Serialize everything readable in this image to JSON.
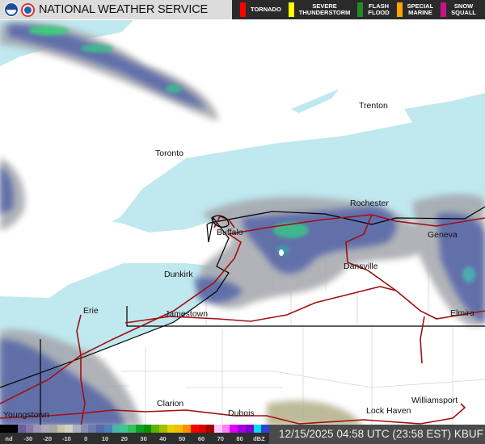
{
  "header": {
    "title": "NATIONAL WEATHER SERVICE",
    "logos": [
      "noaa-logo",
      "nws-logo"
    ],
    "warnings": [
      {
        "label_line1": "TORNADO",
        "label_line2": "",
        "color": "#ff0000"
      },
      {
        "label_line1": "SEVERE",
        "label_line2": "THUNDERSTORM",
        "color": "#ffff00"
      },
      {
        "label_line1": "FLASH",
        "label_line2": "FLOOD",
        "color": "#228b22"
      },
      {
        "label_line1": "SPECIAL",
        "label_line2": "MARINE",
        "color": "#ffa500"
      },
      {
        "label_line1": "SNOW",
        "label_line2": "SQUALL",
        "color": "#c71585"
      }
    ]
  },
  "map": {
    "water_color": "#c0e8ef",
    "road_color": "#a01010",
    "cities": [
      "Trenton",
      "Toronto",
      "Rochester",
      "Buffalo",
      "Geneva",
      "Dunkirk",
      "Dansville",
      "Jamestown",
      "Erie",
      "Elmira",
      "Clarion",
      "Dubois",
      "Williamsport",
      "Lock Haven",
      "Youngstown"
    ]
  },
  "legend": {
    "colors": [
      "#000000",
      "#6e5b9a",
      "#8577ad",
      "#9a96b8",
      "#aea8bd",
      "#a6a6a6",
      "#c4c4a6",
      "#d2d2c2",
      "#a9b1c2",
      "#8d8db2",
      "#6b7ab1",
      "#5868a8",
      "#4b82b8",
      "#4ab2b0",
      "#40c890",
      "#30c060",
      "#10a020",
      "#089000",
      "#60b000",
      "#a0c000",
      "#e8d000",
      "#f0c000",
      "#ff9000",
      "#ff0000",
      "#e00000",
      "#a00000",
      "#ffc8ff",
      "#ff80ff",
      "#e000ff",
      "#a000e0",
      "#8000d0",
      "#00e0f0",
      "#3040d0"
    ],
    "labels": [
      "nd",
      "-30",
      "-20",
      "-10",
      "0",
      "10",
      "20",
      "30",
      "40",
      "50",
      "60",
      "70",
      "80",
      "dBZ"
    ]
  },
  "timestamp": "12/15/2025 04:58 UTC (23:58 EST)  KBUF"
}
